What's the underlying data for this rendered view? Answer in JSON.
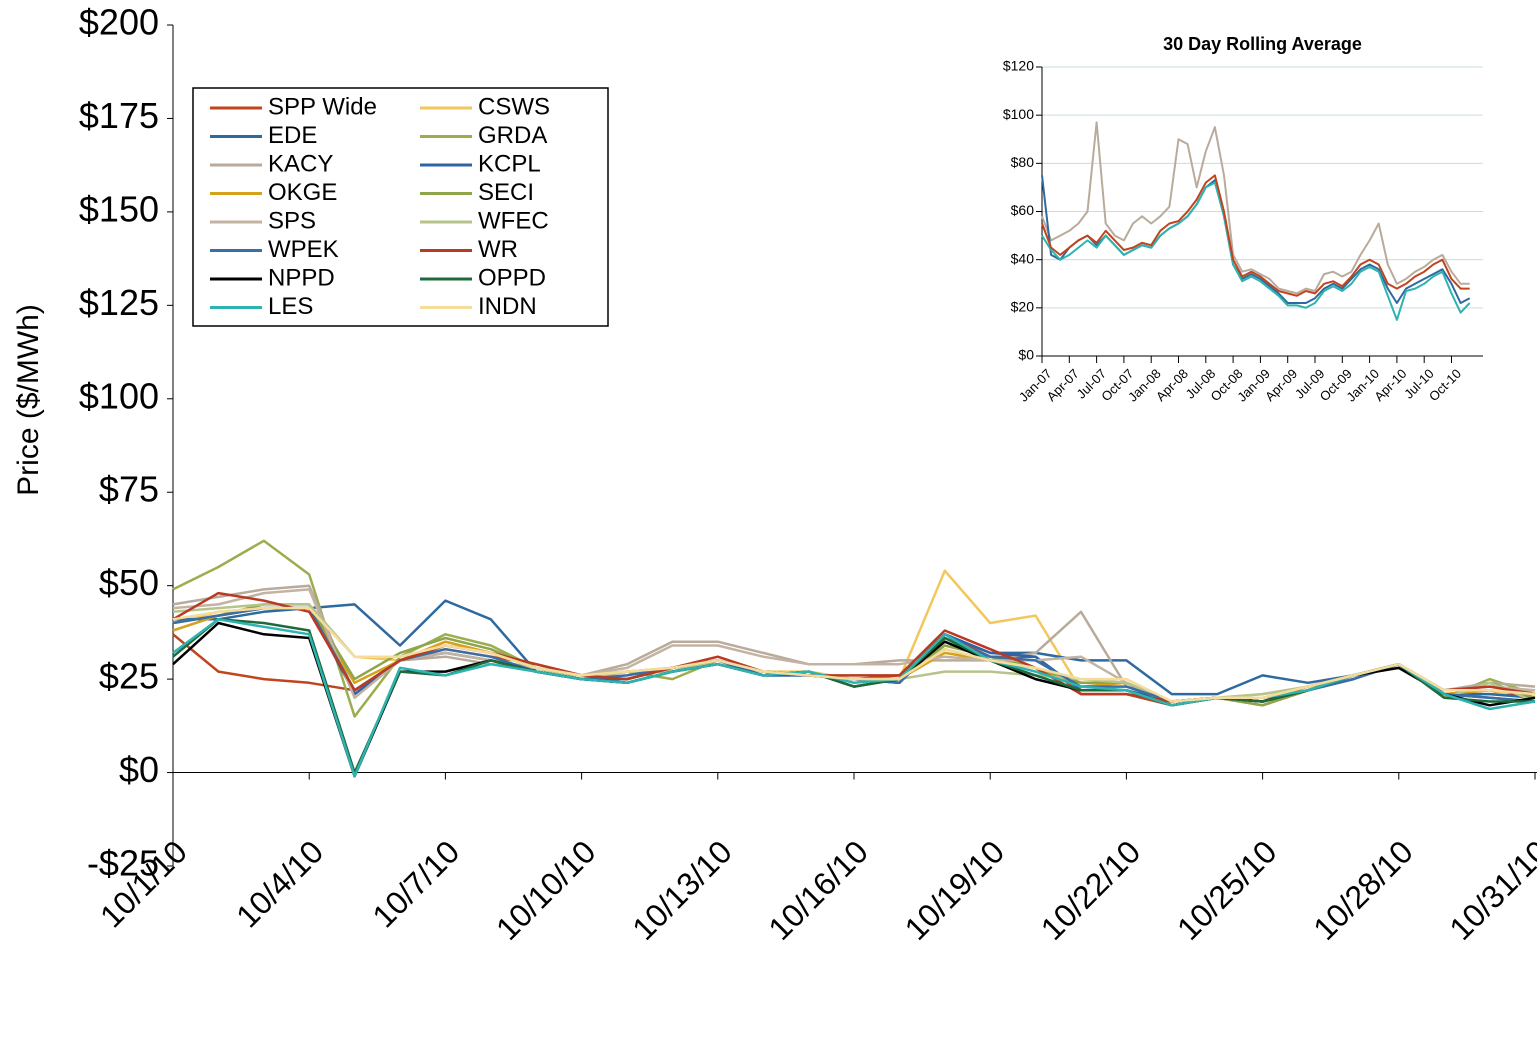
{
  "chart_data": [
    {
      "type": "line",
      "y_label": "Price ($/MWh)",
      "categories": [
        "10/1/10",
        null,
        null,
        "10/4/10",
        null,
        null,
        "10/7/10",
        null,
        null,
        "10/10/10",
        null,
        null,
        "10/13/10",
        null,
        null,
        "10/16/10",
        null,
        null,
        "10/19/10",
        null,
        null,
        "10/22/10",
        null,
        null,
        "10/25/10",
        null,
        null,
        "10/28/10",
        null,
        null,
        "10/31/10"
      ],
      "ylim": [
        -25,
        200
      ],
      "yticks": [
        {
          "value": -25,
          "label": "-$25"
        },
        {
          "value": 0,
          "label": "$0"
        },
        {
          "value": 25,
          "label": "$25"
        },
        {
          "value": 50,
          "label": "$50"
        },
        {
          "value": 75,
          "label": "$75"
        },
        {
          "value": 100,
          "label": "$100"
        },
        {
          "value": 125,
          "label": "$125"
        },
        {
          "value": 150,
          "label": "$150"
        },
        {
          "value": 175,
          "label": "$175"
        },
        {
          "value": 200,
          "label": "$200"
        }
      ],
      "grid": false,
      "legend": "upper left",
      "series": [
        {
          "name": "SPP Wide",
          "color": "#c0451f",
          "values": [
            37,
            27,
            25,
            24,
            22,
            30,
            33,
            31,
            29,
            26,
            25,
            28,
            30,
            27,
            26,
            25,
            26,
            37,
            31,
            31,
            21,
            21,
            18,
            20,
            18,
            22,
            26,
            29,
            21,
            22,
            20
          ]
        },
        {
          "name": "CSWS",
          "color": "#f2c75c",
          "values": [
            40,
            43,
            44,
            44,
            31,
            30,
            35,
            32,
            28,
            26,
            27,
            28,
            30,
            27,
            27,
            25,
            25,
            54,
            40,
            42,
            22,
            22,
            19,
            20,
            21,
            23,
            26,
            29,
            21,
            21,
            22
          ]
        },
        {
          "name": "EDE",
          "color": "#2e6aa0",
          "values": [
            41,
            41,
            43,
            44,
            45,
            34,
            46,
            41,
            27,
            25,
            25,
            28,
            30,
            26,
            26,
            25,
            24,
            37,
            32,
            32,
            30,
            30,
            21,
            21,
            26,
            24,
            26,
            29,
            21,
            21,
            20
          ]
        },
        {
          "name": "GRDA",
          "color": "#9aae4e",
          "values": [
            49,
            55,
            62,
            53,
            15,
            31,
            37,
            34,
            28,
            25,
            27,
            25,
            30,
            27,
            26,
            25,
            25,
            33,
            30,
            28,
            24,
            24,
            18,
            20,
            18,
            22,
            26,
            29,
            20,
            25,
            21
          ]
        },
        {
          "name": "KACY",
          "color": "#b9ab9b",
          "values": [
            45,
            47,
            49,
            50,
            21,
            30,
            31,
            29,
            28,
            26,
            29,
            35,
            35,
            32,
            29,
            29,
            30,
            30,
            30,
            32,
            43,
            23,
            19,
            20,
            19,
            22,
            26,
            28,
            22,
            24,
            23
          ]
        },
        {
          "name": "KCPL",
          "color": "#2f63a8",
          "values": [
            40,
            42,
            44,
            44,
            21,
            30,
            32,
            30,
            27,
            25,
            25,
            28,
            30,
            26,
            26,
            25,
            24,
            37,
            32,
            31,
            22,
            22,
            19,
            20,
            19,
            22,
            25,
            29,
            21,
            20,
            19
          ]
        },
        {
          "name": "OKGE",
          "color": "#d6a21c",
          "values": [
            38,
            42,
            44,
            44,
            24,
            30,
            35,
            32,
            28,
            26,
            27,
            28,
            30,
            27,
            26,
            25,
            25,
            32,
            30,
            28,
            23,
            24,
            19,
            20,
            20,
            23,
            26,
            29,
            21,
            22,
            21
          ]
        },
        {
          "name": "SECI",
          "color": "#8ea54a",
          "values": [
            40,
            42,
            45,
            45,
            25,
            32,
            36,
            33,
            28,
            25,
            27,
            27,
            30,
            27,
            26,
            25,
            25,
            34,
            31,
            28,
            24,
            24,
            18,
            20,
            18,
            22,
            26,
            29,
            20,
            24,
            20
          ]
        },
        {
          "name": "SPS",
          "color": "#c3b3a3",
          "values": [
            44,
            45,
            48,
            49,
            20,
            30,
            32,
            30,
            28,
            26,
            28,
            34,
            34,
            31,
            29,
            29,
            29,
            31,
            30,
            30,
            31,
            24,
            19,
            20,
            19,
            22,
            26,
            28,
            22,
            23,
            22
          ]
        },
        {
          "name": "WFEC",
          "color": "#b6c48c",
          "values": [
            43,
            44,
            45,
            45,
            31,
            31,
            34,
            32,
            28,
            25,
            27,
            27,
            30,
            27,
            26,
            25,
            25,
            27,
            27,
            26,
            25,
            24,
            19,
            20,
            21,
            23,
            26,
            29,
            20,
            24,
            19
          ]
        },
        {
          "name": "WPEK",
          "color": "#3a6ea5",
          "values": [
            40,
            42,
            44,
            44,
            22,
            30,
            33,
            31,
            27,
            25,
            26,
            28,
            30,
            27,
            26,
            25,
            24,
            36,
            31,
            30,
            23,
            23,
            19,
            20,
            19,
            22,
            25,
            29,
            21,
            20,
            19
          ]
        },
        {
          "name": "WR",
          "color": "#b83a22",
          "values": [
            41,
            48,
            46,
            43,
            22,
            30,
            34,
            32,
            29,
            26,
            25,
            28,
            31,
            27,
            26,
            26,
            26,
            38,
            33,
            28,
            21,
            21,
            19,
            20,
            19,
            23,
            26,
            29,
            22,
            23,
            21
          ]
        },
        {
          "name": "NPPD",
          "color": "#000000",
          "values": [
            29,
            40,
            37,
            36,
            -1,
            27,
            27,
            30,
            27,
            25,
            24,
            27,
            29,
            26,
            27,
            23,
            25,
            35,
            30,
            25,
            22,
            22,
            18,
            20,
            19,
            22,
            26,
            28,
            21,
            18,
            20
          ]
        },
        {
          "name": "OPPD",
          "color": "#1f6a3c",
          "values": [
            31,
            41,
            40,
            38,
            0,
            27,
            26,
            30,
            27,
            25,
            24,
            27,
            29,
            26,
            27,
            23,
            25,
            36,
            30,
            26,
            22,
            22,
            18,
            20,
            19,
            22,
            26,
            29,
            20,
            19,
            19
          ]
        },
        {
          "name": "LES",
          "color": "#2db3b0",
          "values": [
            32,
            41,
            39,
            37,
            -1,
            28,
            26,
            29,
            27,
            25,
            24,
            27,
            29,
            26,
            27,
            24,
            25,
            37,
            30,
            27,
            23,
            22,
            18,
            20,
            20,
            22,
            26,
            29,
            21,
            17,
            19
          ]
        },
        {
          "name": "INDN",
          "color": "#f6dc9c",
          "values": [
            41,
            43,
            44,
            44,
            31,
            31,
            34,
            32,
            28,
            26,
            27,
            28,
            30,
            27,
            26,
            25,
            25,
            33,
            30,
            28,
            25,
            25,
            19,
            20,
            20,
            23,
            26,
            29,
            22,
            22,
            21
          ]
        }
      ]
    },
    {
      "type": "line",
      "title": "30 Day Rolling Average",
      "categories": [
        "Jan-07",
        null,
        null,
        "Apr-07",
        null,
        null,
        "Jul-07",
        null,
        null,
        "Oct-07",
        null,
        null,
        "Jan-08",
        null,
        null,
        "Apr-08",
        null,
        null,
        "Jul-08",
        null,
        null,
        "Oct-08",
        null,
        null,
        "Jan-09",
        null,
        null,
        "Apr-09",
        null,
        null,
        "Jul-09",
        null,
        null,
        "Oct-09",
        null,
        null,
        "Jan-10",
        null,
        null,
        "Apr-10",
        null,
        null,
        "Jul-10",
        null,
        null,
        "Oct-10",
        null,
        null
      ],
      "ylim": [
        0,
        120
      ],
      "yticks": [
        {
          "value": 0,
          "label": "$0"
        },
        {
          "value": 20,
          "label": "$20"
        },
        {
          "value": 40,
          "label": "$40"
        },
        {
          "value": 60,
          "label": "$60"
        },
        {
          "value": 80,
          "label": "$80"
        },
        {
          "value": 100,
          "label": "$100"
        },
        {
          "value": 120,
          "label": "$120"
        }
      ],
      "grid": true,
      "series": [
        {
          "name": "KACY",
          "color": "#b9ab9b",
          "values": [
            58,
            48,
            50,
            52,
            55,
            60,
            97,
            55,
            50,
            48,
            55,
            58,
            55,
            58,
            62,
            90,
            88,
            70,
            85,
            95,
            75,
            42,
            35,
            36,
            34,
            32,
            28,
            27,
            26,
            28,
            27,
            34,
            35,
            33,
            35,
            42,
            48,
            55,
            38,
            30,
            32,
            35,
            37,
            40,
            42,
            35,
            30,
            30
          ]
        },
        {
          "name": "EDE",
          "color": "#2e6aa0",
          "values": [
            75,
            42,
            40,
            45,
            48,
            50,
            46,
            50,
            46,
            42,
            44,
            46,
            45,
            50,
            53,
            55,
            58,
            63,
            70,
            73,
            58,
            38,
            32,
            34,
            32,
            29,
            26,
            22,
            22,
            22,
            24,
            28,
            30,
            28,
            32,
            36,
            38,
            36,
            28,
            22,
            28,
            30,
            32,
            34,
            36,
            30,
            22,
            24
          ]
        },
        {
          "name": "LES",
          "color": "#2db3b0",
          "values": [
            50,
            44,
            40,
            42,
            45,
            48,
            45,
            50,
            46,
            42,
            44,
            46,
            45,
            50,
            53,
            55,
            58,
            63,
            70,
            72,
            58,
            38,
            31,
            33,
            31,
            28,
            25,
            21,
            21,
            20,
            22,
            27,
            29,
            27,
            30,
            35,
            37,
            35,
            25,
            15,
            27,
            28,
            30,
            33,
            35,
            26,
            18,
            22
          ]
        },
        {
          "name": "SPP Wide",
          "color": "#c0451f",
          "values": [
            55,
            45,
            42,
            45,
            48,
            50,
            47,
            52,
            48,
            44,
            45,
            47,
            46,
            52,
            55,
            56,
            60,
            65,
            72,
            75,
            60,
            40,
            33,
            35,
            33,
            30,
            27,
            26,
            25,
            27,
            26,
            30,
            31,
            29,
            33,
            38,
            40,
            38,
            30,
            28,
            30,
            33,
            35,
            38,
            40,
            32,
            28,
            28
          ]
        }
      ]
    }
  ]
}
